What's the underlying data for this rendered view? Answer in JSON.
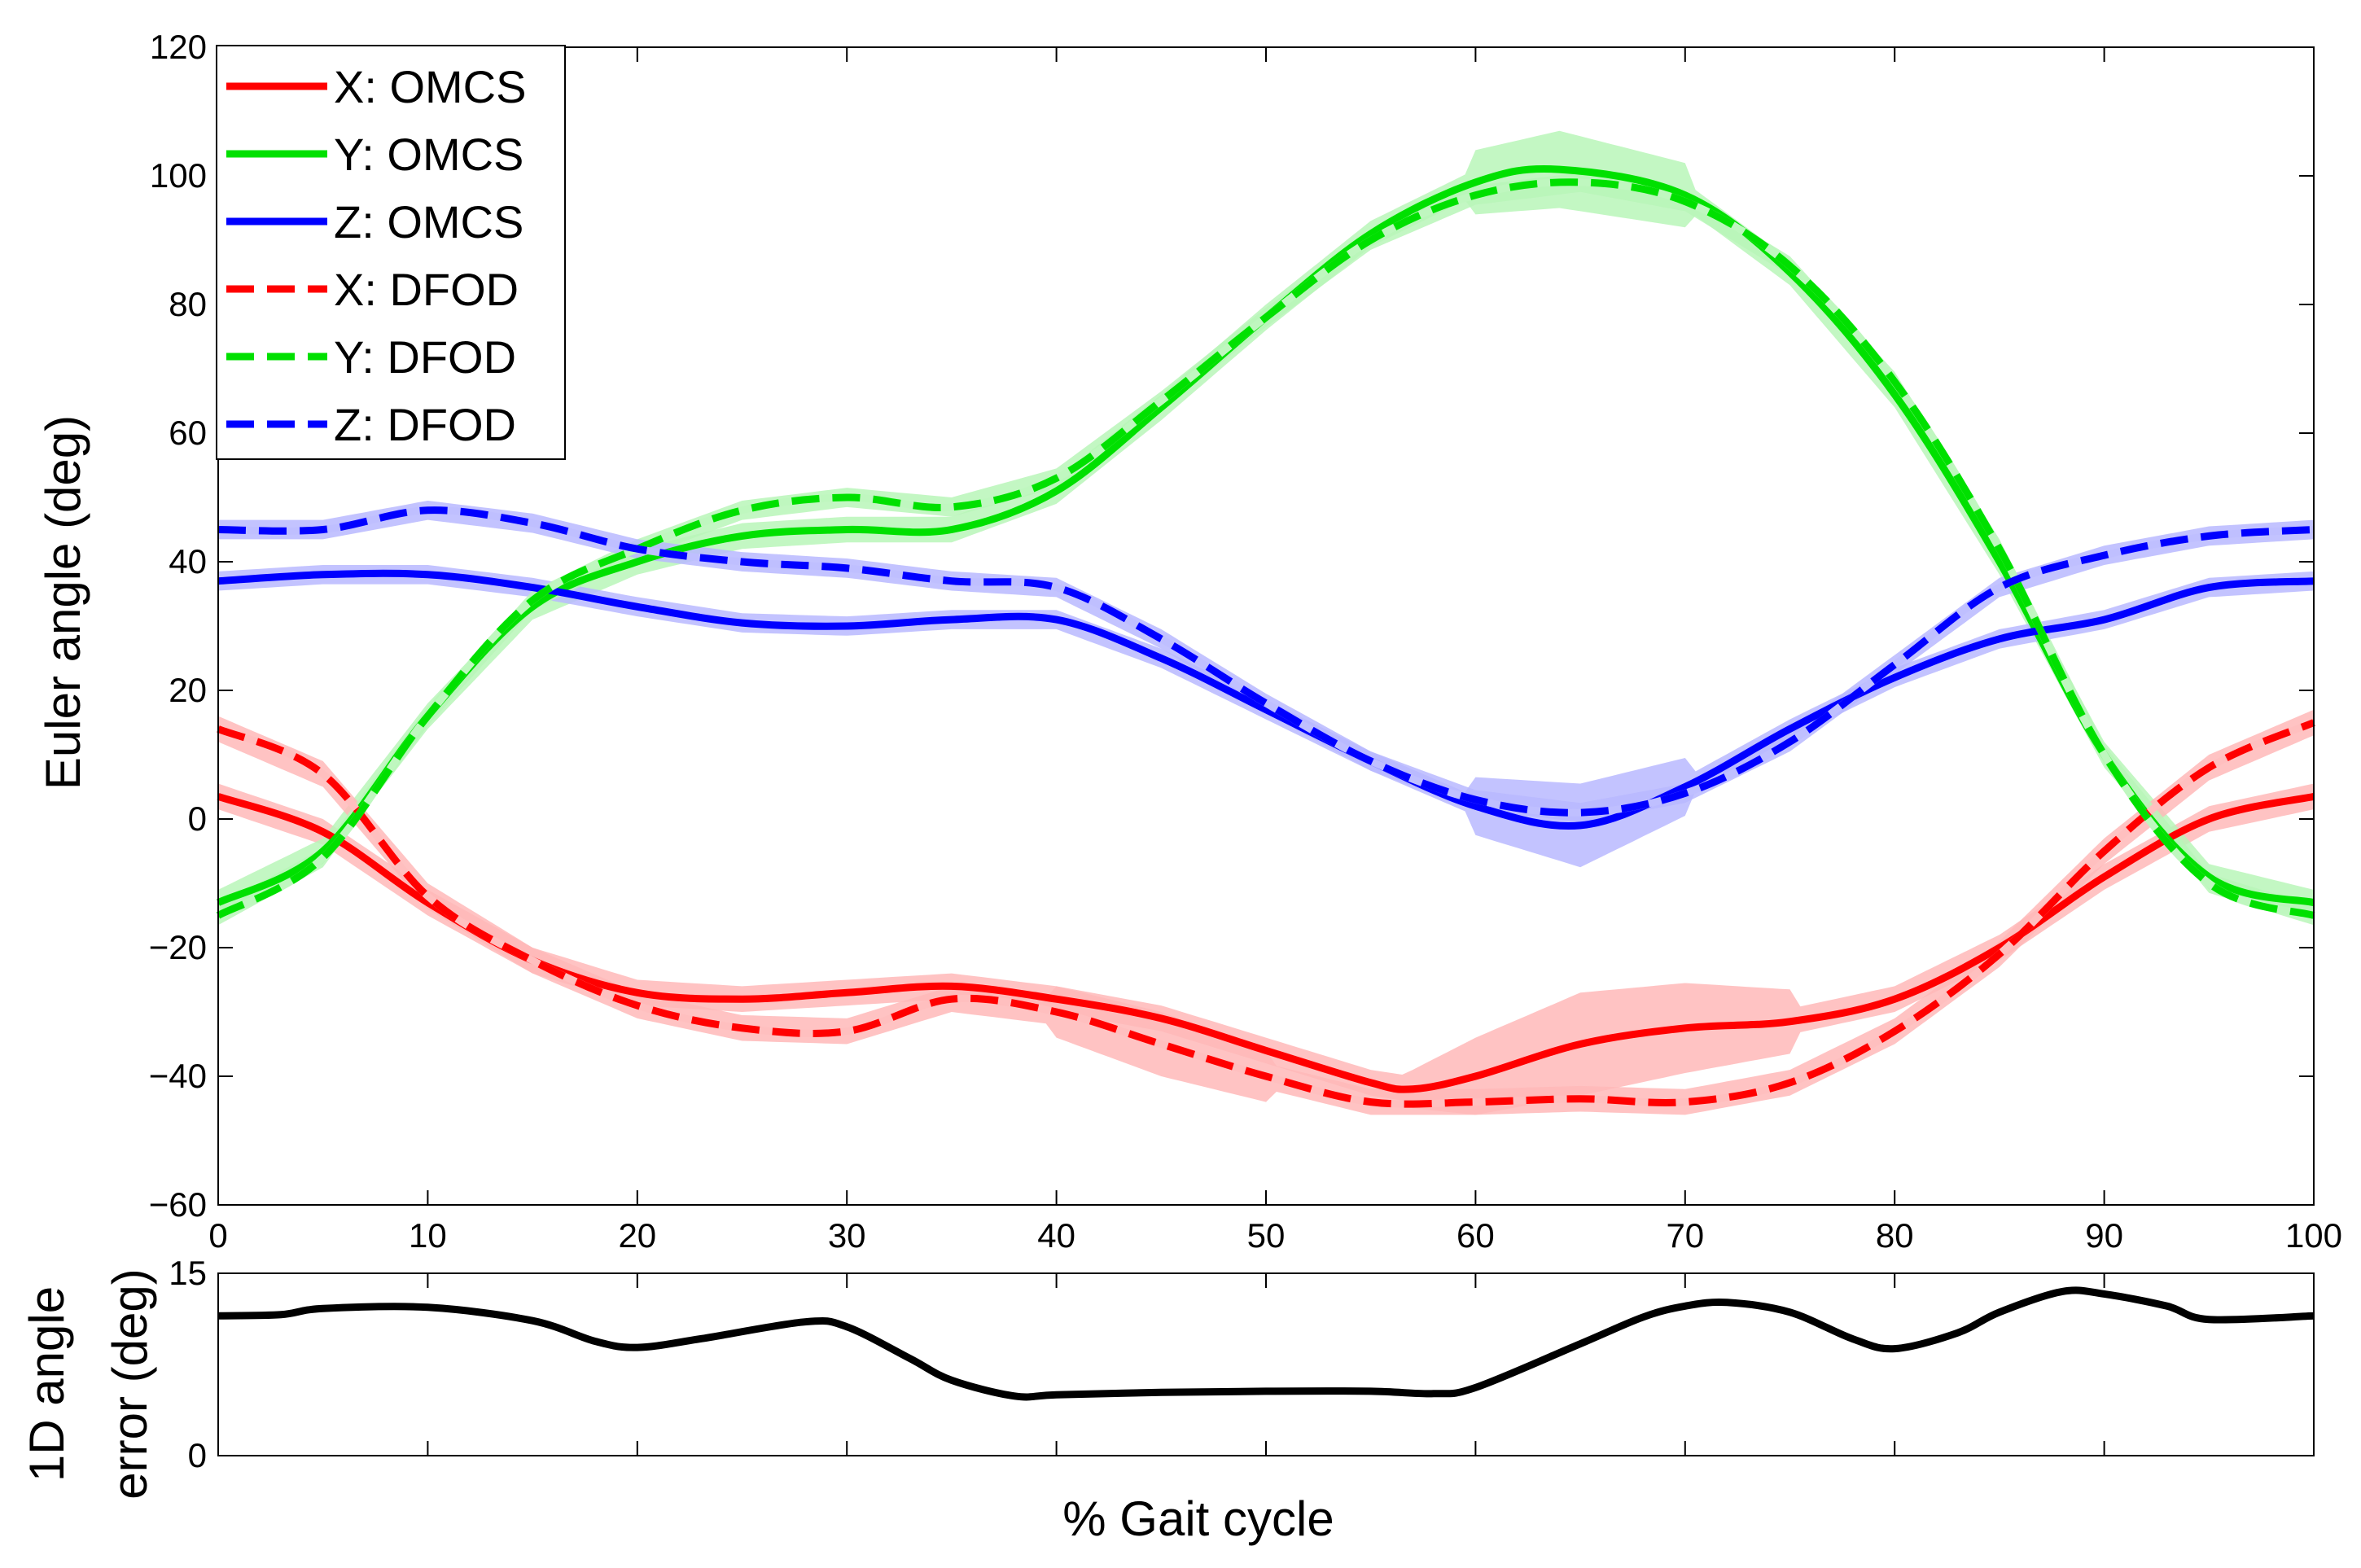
{
  "chart_data": [
    {
      "type": "line",
      "panel": "main",
      "title": "",
      "xlabel": "",
      "ylabel": "Euler angle (deg)",
      "xlim": [
        0,
        100
      ],
      "ylim": [
        -60,
        120
      ],
      "xticks": [
        0,
        10,
        20,
        30,
        40,
        50,
        60,
        70,
        80,
        90,
        100
      ],
      "yticks": [
        -60,
        -40,
        -20,
        0,
        20,
        40,
        60,
        80,
        100,
        120
      ],
      "grid": false,
      "legend_position": "top-left",
      "series": [
        {
          "name": "X: OMCS",
          "color": "#ff0000",
          "dash": "solid",
          "band": 2,
          "x": [
            0,
            5,
            10,
            15,
            20,
            25,
            30,
            35,
            40,
            45,
            50,
            55,
            57,
            60,
            65,
            70,
            75,
            80,
            85,
            90,
            95,
            100
          ],
          "y": [
            3.5,
            -2,
            -13,
            -22,
            -27,
            -28,
            -27,
            -26,
            -28,
            -31,
            -36,
            -41,
            -42,
            -40,
            -35,
            -32.5,
            -31.5,
            -28,
            -20,
            -9,
            0,
            3.5
          ],
          "band_x": [
            57,
            60,
            65,
            70,
            75
          ],
          "band_y": [
            1,
            4,
            6,
            5,
            3
          ]
        },
        {
          "name": "Y: OMCS",
          "color": "#00e000",
          "dash": "solid",
          "band": 2,
          "x": [
            0,
            5,
            10,
            15,
            20,
            25,
            30,
            35,
            40,
            45,
            50,
            55,
            60,
            64,
            70,
            75,
            80,
            85,
            90,
            95,
            100
          ],
          "y": [
            -13,
            -5,
            16,
            33,
            40,
            44,
            45,
            45,
            51,
            64,
            78,
            91,
            99,
            101,
            97,
            85,
            66,
            40,
            10,
            -9,
            -13
          ],
          "band_x": [
            60,
            64,
            70
          ],
          "band_y": [
            3,
            4,
            3
          ]
        },
        {
          "name": "Z: OMCS",
          "color": "#0000ff",
          "dash": "solid",
          "band": 1.5,
          "x": [
            0,
            5,
            10,
            15,
            20,
            25,
            30,
            35,
            40,
            45,
            50,
            55,
            60,
            65,
            70,
            75,
            80,
            85,
            90,
            95,
            100
          ],
          "y": [
            37,
            38,
            38,
            36,
            33,
            30.5,
            30,
            31,
            31,
            25,
            17,
            9,
            2,
            -1,
            5,
            14,
            22,
            28,
            31,
            36,
            37
          ],
          "band_x": [
            60,
            65,
            70
          ],
          "band_y": [
            3,
            5,
            3
          ]
        },
        {
          "name": "X: DFOD",
          "color": "#ff0000",
          "dash": "dashed",
          "band": 2,
          "x": [
            0,
            5,
            10,
            15,
            20,
            25,
            30,
            35,
            40,
            45,
            50,
            55,
            60,
            65,
            70,
            75,
            80,
            85,
            90,
            95,
            100
          ],
          "y": [
            14,
            7,
            -12,
            -22,
            -29,
            -32.5,
            -33,
            -28,
            -30,
            -35,
            -40,
            -44,
            -44,
            -43.5,
            -44,
            -41,
            -33,
            -21,
            -5,
            8,
            15
          ],
          "band_x": [
            40,
            45,
            50
          ],
          "band_y": [
            2,
            3,
            2
          ]
        },
        {
          "name": "Y: DFOD",
          "color": "#00e000",
          "dash": "dashed",
          "band": 1.5,
          "x": [
            0,
            5,
            10,
            15,
            20,
            25,
            30,
            35,
            40,
            45,
            50,
            55,
            60,
            65,
            70,
            75,
            80,
            85,
            90,
            95,
            100
          ],
          "y": [
            -15,
            -6,
            16,
            34,
            42,
            48,
            50,
            48.5,
            53,
            65,
            78,
            90,
            97,
            99,
            96,
            86,
            68,
            42,
            10,
            -10,
            -15
          ],
          "band_x": [],
          "band_y": []
        },
        {
          "name": "Z: DFOD",
          "color": "#0000ff",
          "dash": "dashed",
          "band": 1.5,
          "x": [
            0,
            5,
            10,
            15,
            20,
            25,
            30,
            35,
            40,
            45,
            50,
            55,
            60,
            65,
            70,
            75,
            80,
            85,
            90,
            95,
            100
          ],
          "y": [
            45,
            45,
            48,
            46,
            42,
            40,
            39,
            37,
            36,
            28,
            18,
            9,
            3,
            1,
            4,
            12,
            24,
            36,
            41,
            44,
            45
          ],
          "band_x": [],
          "band_y": []
        }
      ],
      "legend": [
        "X: OMCS",
        "Y: OMCS",
        "Z: OMCS",
        "X: DFOD",
        "Y: DFOD",
        "Z: DFOD"
      ]
    },
    {
      "type": "line",
      "panel": "error",
      "title": "",
      "xlabel": "% Gait cycle",
      "ylabel": "1D angle error (deg)",
      "ylabel_lines": [
        "1D angle",
        "error (deg)"
      ],
      "xlim": [
        0,
        100
      ],
      "ylim": [
        0,
        15
      ],
      "yticks": [
        0,
        15
      ],
      "xticks": [
        0,
        10,
        20,
        30,
        40,
        50,
        60,
        70,
        80,
        90,
        100
      ],
      "grid": false,
      "series": [
        {
          "name": "1D angle error",
          "color": "#000000",
          "dash": "solid",
          "x": [
            0,
            3,
            5,
            10,
            15,
            18,
            20,
            23,
            28,
            30,
            33,
            35,
            38,
            40,
            45,
            50,
            55,
            58,
            60,
            65,
            68,
            70,
            72,
            75,
            78,
            80,
            83,
            85,
            88,
            90,
            93,
            95,
            100
          ],
          "y": [
            11.5,
            11.6,
            12.1,
            12.2,
            11.1,
            9.4,
            8.9,
            9.6,
            11,
            10.6,
            8,
            6.2,
            4.9,
            5,
            5.2,
            5.3,
            5.3,
            5.1,
            5.6,
            9.2,
            11.4,
            12.3,
            12.6,
            11.8,
            9.6,
            8.8,
            10.1,
            11.8,
            13.5,
            13.3,
            12.3,
            11.2,
            11.5
          ]
        }
      ]
    }
  ]
}
